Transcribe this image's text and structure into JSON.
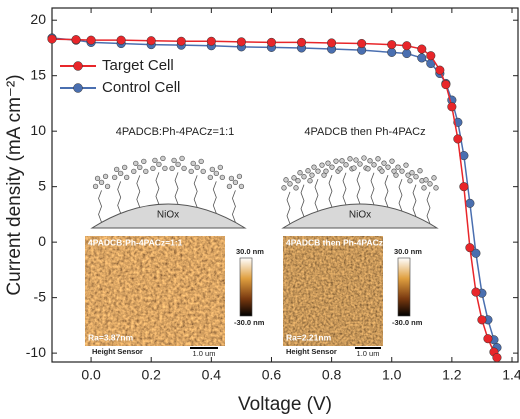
{
  "chart_data": {
    "type": "line_markers",
    "xlabel": "Voltage (V)",
    "ylabel": "Current density (mA cm⁻²)",
    "x": [
      -0.13,
      -0.05,
      0,
      0.1,
      0.2,
      0.3,
      0.4,
      0.5,
      0.6,
      0.7,
      0.8,
      0.9,
      1.0,
      1.05,
      1.1,
      1.13,
      1.16,
      1.18,
      1.2,
      1.22,
      1.24,
      1.26,
      1.28,
      1.3,
      1.32,
      1.34,
      1.35
    ],
    "series": [
      {
        "name": "Target Cell",
        "color": "#e8262a",
        "values": [
          18.3,
          18.25,
          18.2,
          18.2,
          18.15,
          18.1,
          18.1,
          18.05,
          18.0,
          18.0,
          17.95,
          17.9,
          17.8,
          17.7,
          17.4,
          16.8,
          15.5,
          14.2,
          12.2,
          9.3,
          5.0,
          -0.5,
          -4.5,
          -7.0,
          -8.7,
          -9.9,
          -10.4
        ]
      },
      {
        "name": "Control Cell",
        "color": "#4a6fb0",
        "values": [
          18.4,
          18.2,
          18.0,
          17.9,
          17.8,
          17.75,
          17.7,
          17.6,
          17.55,
          17.5,
          17.4,
          17.3,
          17.1,
          17.0,
          16.6,
          16.1,
          15.2,
          14.3,
          12.8,
          10.8,
          7.8,
          3.5,
          -1.0,
          -4.6,
          -7.0,
          -8.8,
          -9.5
        ]
      }
    ],
    "xlim": [
      -0.13,
      1.42
    ],
    "ylim": [
      -10.8,
      21.1
    ],
    "xticks": [
      {
        "value": 0,
        "label": "0.0"
      },
      {
        "value": 0.2,
        "label": "0.2"
      },
      {
        "value": 0.4,
        "label": "0.4"
      },
      {
        "value": 0.6,
        "label": "0.6"
      },
      {
        "value": 0.8,
        "label": "0.8"
      },
      {
        "value": 1.0,
        "label": "1.0"
      },
      {
        "value": 1.2,
        "label": "1.2"
      },
      {
        "value": 1.4,
        "label": "1.4"
      }
    ],
    "yticks": [
      -10,
      -5,
      0,
      5,
      10,
      15,
      20
    ],
    "legend": "upper-left",
    "annotations": [
      "4PADCB:Ph-4PACz=1:1",
      "4PADCB then Ph-4PACz",
      "NiOx",
      "Ra=3.87nm",
      "Ra=2.21nm",
      "Height Sensor",
      "1.0 um",
      "30.0 nm",
      "-30.0 nm"
    ]
  }
}
